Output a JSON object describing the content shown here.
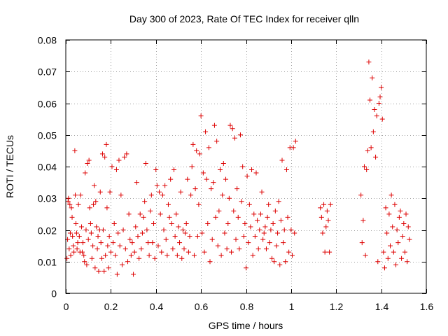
{
  "chart_data": {
    "type": "scatter",
    "title": "Day 300 of 2023, Rate Of TEC Index for receiver qlln",
    "xlabel": "GPS time / hours",
    "ylabel": "ROTI / TECUs",
    "xlim": [
      0,
      1.6
    ],
    "ylim": [
      0,
      0.08
    ],
    "x_ticks": [
      0,
      0.2,
      0.4,
      0.6,
      0.8,
      1,
      1.2,
      1.4,
      1.6
    ],
    "x_tick_labels": [
      "0",
      "0.2",
      "0.4",
      "0.6",
      "0.8",
      "1",
      "1.2",
      "1.4",
      "1.6"
    ],
    "y_ticks": [
      0,
      0.01,
      0.02,
      0.03,
      0.04,
      0.05,
      0.06,
      0.07,
      0.08
    ],
    "y_tick_labels": [
      "0",
      "0.01",
      "0.02",
      "0.03",
      "0.04",
      "0.05",
      "0.06",
      "0.07",
      "0.08"
    ],
    "grid": true,
    "marker": "+",
    "marker_color": "#dd0000",
    "series": [
      {
        "points": [
          [
            0.005,
            0.011
          ],
          [
            0.008,
            0.017
          ],
          [
            0.01,
            0.029
          ],
          [
            0.012,
            0.03
          ],
          [
            0.015,
            0.014
          ],
          [
            0.018,
            0.028
          ],
          [
            0.02,
            0.019
          ],
          [
            0.022,
            0.012
          ],
          [
            0.025,
            0.027
          ],
          [
            0.028,
            0.024
          ],
          [
            0.03,
            0.018
          ],
          [
            0.033,
            0.015
          ],
          [
            0.036,
            0.013
          ],
          [
            0.04,
            0.045
          ],
          [
            0.042,
            0.031
          ],
          [
            0.045,
            0.022
          ],
          [
            0.048,
            0.019
          ],
          [
            0.05,
            0.014
          ],
          [
            0.053,
            0.016
          ],
          [
            0.056,
            0.028
          ],
          [
            0.06,
            0.018
          ],
          [
            0.063,
            0.013
          ],
          [
            0.066,
            0.031
          ],
          [
            0.07,
            0.021
          ],
          [
            0.073,
            0.013
          ],
          [
            0.076,
            0.016
          ],
          [
            0.08,
            0.012
          ],
          [
            0.083,
            0.01
          ],
          [
            0.086,
            0.038
          ],
          [
            0.09,
            0.02
          ],
          [
            0.093,
            0.009
          ],
          [
            0.096,
            0.041
          ],
          [
            0.1,
            0.017
          ],
          [
            0.103,
            0.042
          ],
          [
            0.106,
            0.027
          ],
          [
            0.11,
            0.022
          ],
          [
            0.113,
            0.019
          ],
          [
            0.116,
            0.011
          ],
          [
            0.12,
            0.015
          ],
          [
            0.123,
            0.028
          ],
          [
            0.126,
            0.034
          ],
          [
            0.13,
            0.008
          ],
          [
            0.133,
            0.029
          ],
          [
            0.136,
            0.021
          ],
          [
            0.14,
            0.014
          ],
          [
            0.143,
            0.018
          ],
          [
            0.146,
            0.007
          ],
          [
            0.15,
            0.02
          ],
          [
            0.153,
            0.032
          ],
          [
            0.156,
            0.016
          ],
          [
            0.16,
            0.011
          ],
          [
            0.163,
            0.044
          ],
          [
            0.166,
            0.02
          ],
          [
            0.17,
            0.007
          ],
          [
            0.173,
            0.043
          ],
          [
            0.176,
            0.012
          ],
          [
            0.18,
            0.047
          ],
          [
            0.183,
            0.027
          ],
          [
            0.186,
            0.015
          ],
          [
            0.19,
            0.008
          ],
          [
            0.193,
            0.018
          ],
          [
            0.196,
            0.032
          ],
          [
            0.2,
            0.013
          ],
          [
            0.205,
            0.04
          ],
          [
            0.21,
            0.016
          ],
          [
            0.215,
            0.022
          ],
          [
            0.22,
            0.012
          ],
          [
            0.225,
            0.039
          ],
          [
            0.228,
            0.006
          ],
          [
            0.232,
            0.019
          ],
          [
            0.236,
            0.042
          ],
          [
            0.24,
            0.015
          ],
          [
            0.245,
            0.031
          ],
          [
            0.25,
            0.009
          ],
          [
            0.255,
            0.02
          ],
          [
            0.26,
            0.043
          ],
          [
            0.265,
            0.014
          ],
          [
            0.27,
            0.044
          ],
          [
            0.275,
            0.01
          ],
          [
            0.28,
            0.025
          ],
          [
            0.285,
            0.017
          ],
          [
            0.29,
            0.012
          ],
          [
            0.295,
            0.016
          ],
          [
            0.3,
            0.006
          ],
          [
            0.305,
            0.013
          ],
          [
            0.31,
            0.021
          ],
          [
            0.315,
            0.035
          ],
          [
            0.32,
            0.018
          ],
          [
            0.325,
            0.011
          ],
          [
            0.33,
            0.025
          ],
          [
            0.335,
            0.014
          ],
          [
            0.34,
            0.019
          ],
          [
            0.345,
            0.024
          ],
          [
            0.35,
            0.029
          ],
          [
            0.355,
            0.041
          ],
          [
            0.36,
            0.02
          ],
          [
            0.365,
            0.016
          ],
          [
            0.37,
            0.012
          ],
          [
            0.375,
            0.026
          ],
          [
            0.38,
            0.031
          ],
          [
            0.385,
            0.016
          ],
          [
            0.39,
            0.022
          ],
          [
            0.395,
            0.011
          ],
          [
            0.4,
            0.039
          ],
          [
            0.405,
            0.034
          ],
          [
            0.41,
            0.015
          ],
          [
            0.415,
            0.032
          ],
          [
            0.42,
            0.025
          ],
          [
            0.425,
            0.013
          ],
          [
            0.43,
            0.031
          ],
          [
            0.435,
            0.02
          ],
          [
            0.44,
            0.034
          ],
          [
            0.445,
            0.017
          ],
          [
            0.45,
            0.012
          ],
          [
            0.455,
            0.028
          ],
          [
            0.46,
            0.024
          ],
          [
            0.465,
            0.036
          ],
          [
            0.47,
            0.022
          ],
          [
            0.475,
            0.014
          ],
          [
            0.48,
            0.039
          ],
          [
            0.485,
            0.018
          ],
          [
            0.49,
            0.025
          ],
          [
            0.495,
            0.012
          ],
          [
            0.5,
            0.021
          ],
          [
            0.505,
            0.016
          ],
          [
            0.51,
            0.032
          ],
          [
            0.515,
            0.011
          ],
          [
            0.52,
            0.02
          ],
          [
            0.525,
            0.014
          ],
          [
            0.53,
            0.019
          ],
          [
            0.535,
            0.022
          ],
          [
            0.54,
            0.036
          ],
          [
            0.545,
            0.013
          ],
          [
            0.55,
            0.018
          ],
          [
            0.555,
            0.031
          ],
          [
            0.56,
            0.04
          ],
          [
            0.565,
            0.047
          ],
          [
            0.57,
            0.012
          ],
          [
            0.575,
            0.033
          ],
          [
            0.58,
            0.045
          ],
          [
            0.585,
            0.018
          ],
          [
            0.59,
            0.028
          ],
          [
            0.595,
            0.044
          ],
          [
            0.6,
            0.056
          ],
          [
            0.605,
            0.019
          ],
          [
            0.61,
            0.038
          ],
          [
            0.615,
            0.013
          ],
          [
            0.62,
            0.051
          ],
          [
            0.625,
            0.036
          ],
          [
            0.63,
            0.022
          ],
          [
            0.635,
            0.046
          ],
          [
            0.64,
            0.01
          ],
          [
            0.645,
            0.033
          ],
          [
            0.65,
            0.017
          ],
          [
            0.655,
            0.035
          ],
          [
            0.66,
            0.053
          ],
          [
            0.665,
            0.024
          ],
          [
            0.67,
            0.048
          ],
          [
            0.675,
            0.015
          ],
          [
            0.68,
            0.026
          ],
          [
            0.685,
            0.039
          ],
          [
            0.69,
            0.012
          ],
          [
            0.695,
            0.031
          ],
          [
            0.7,
            0.041
          ],
          [
            0.705,
            0.019
          ],
          [
            0.71,
            0.036
          ],
          [
            0.715,
            0.014
          ],
          [
            0.72,
            0.022
          ],
          [
            0.725,
            0.03
          ],
          [
            0.73,
            0.053
          ],
          [
            0.735,
            0.013
          ],
          [
            0.74,
            0.052
          ],
          [
            0.745,
            0.026
          ],
          [
            0.75,
            0.049
          ],
          [
            0.755,
            0.017
          ],
          [
            0.76,
            0.033
          ],
          [
            0.765,
            0.024
          ],
          [
            0.77,
            0.014
          ],
          [
            0.775,
            0.05
          ],
          [
            0.78,
            0.029
          ],
          [
            0.785,
            0.04
          ],
          [
            0.79,
            0.018
          ],
          [
            0.795,
            0.022
          ],
          [
            0.8,
            0.008
          ],
          [
            0.805,
            0.037
          ],
          [
            0.81,
            0.016
          ],
          [
            0.815,
            0.028
          ],
          [
            0.82,
            0.021
          ],
          [
            0.825,
            0.039
          ],
          [
            0.83,
            0.012
          ],
          [
            0.835,
            0.025
          ],
          [
            0.84,
            0.018
          ],
          [
            0.845,
            0.038
          ],
          [
            0.85,
            0.023
          ],
          [
            0.855,
            0.014
          ],
          [
            0.86,
            0.02
          ],
          [
            0.865,
            0.025
          ],
          [
            0.87,
            0.032
          ],
          [
            0.875,
            0.017
          ],
          [
            0.88,
            0.019
          ],
          [
            0.885,
            0.021
          ],
          [
            0.89,
            0.014
          ],
          [
            0.895,
            0.024
          ],
          [
            0.9,
            0.028
          ],
          [
            0.905,
            0.016
          ],
          [
            0.91,
            0.02
          ],
          [
            0.915,
            0.011
          ],
          [
            0.92,
            0.022
          ],
          [
            0.925,
            0.01
          ],
          [
            0.93,
            0.026
          ],
          [
            0.935,
            0.015
          ],
          [
            0.94,
            0.019
          ],
          [
            0.945,
            0.029
          ],
          [
            0.95,
            0.009
          ],
          [
            0.955,
            0.023
          ],
          [
            0.96,
            0.042
          ],
          [
            0.965,
            0.016
          ],
          [
            0.97,
            0.02
          ],
          [
            0.975,
            0.01
          ],
          [
            0.98,
            0.039
          ],
          [
            0.985,
            0.024
          ],
          [
            0.99,
            0.013
          ],
          [
            0.995,
            0.046
          ],
          [
            1.0,
            0.02
          ],
          [
            1.005,
            0.012
          ],
          [
            1.01,
            0.046
          ],
          [
            1.015,
            0.019
          ],
          [
            1.02,
            0.048
          ],
          [
            1.13,
            0.027
          ],
          [
            1.135,
            0.024
          ],
          [
            1.14,
            0.019
          ],
          [
            1.145,
            0.028
          ],
          [
            1.15,
            0.013
          ],
          [
            1.155,
            0.021
          ],
          [
            1.16,
            0.026
          ],
          [
            1.165,
            0.023
          ],
          [
            1.17,
            0.013
          ],
          [
            1.175,
            0.028
          ],
          [
            1.31,
            0.031
          ],
          [
            1.315,
            0.016
          ],
          [
            1.32,
            0.023
          ],
          [
            1.325,
            0.04
          ],
          [
            1.33,
            0.012
          ],
          [
            1.335,
            0.039
          ],
          [
            1.34,
            0.045
          ],
          [
            1.345,
            0.073
          ],
          [
            1.35,
            0.061
          ],
          [
            1.355,
            0.046
          ],
          [
            1.36,
            0.068
          ],
          [
            1.365,
            0.051
          ],
          [
            1.37,
            0.058
          ],
          [
            1.375,
            0.043
          ],
          [
            1.38,
            0.056
          ],
          [
            1.385,
            0.01
          ],
          [
            1.39,
            0.06
          ],
          [
            1.395,
            0.062
          ],
          [
            1.4,
            0.065
          ],
          [
            1.405,
            0.055
          ],
          [
            1.41,
            0.013
          ],
          [
            1.415,
            0.008
          ],
          [
            1.42,
            0.027
          ],
          [
            1.425,
            0.019
          ],
          [
            1.43,
            0.011
          ],
          [
            1.435,
            0.025
          ],
          [
            1.44,
            0.015
          ],
          [
            1.445,
            0.031
          ],
          [
            1.45,
            0.021
          ],
          [
            1.455,
            0.013
          ],
          [
            1.46,
            0.028
          ],
          [
            1.465,
            0.009
          ],
          [
            1.47,
            0.02
          ],
          [
            1.475,
            0.016
          ],
          [
            1.48,
            0.024
          ],
          [
            1.485,
            0.026
          ],
          [
            1.49,
            0.011
          ],
          [
            1.495,
            0.018
          ],
          [
            1.5,
            0.022
          ],
          [
            1.505,
            0.013
          ],
          [
            1.51,
            0.025
          ],
          [
            1.515,
            0.01
          ],
          [
            1.52,
            0.021
          ],
          [
            1.525,
            0.017
          ]
        ]
      }
    ]
  }
}
